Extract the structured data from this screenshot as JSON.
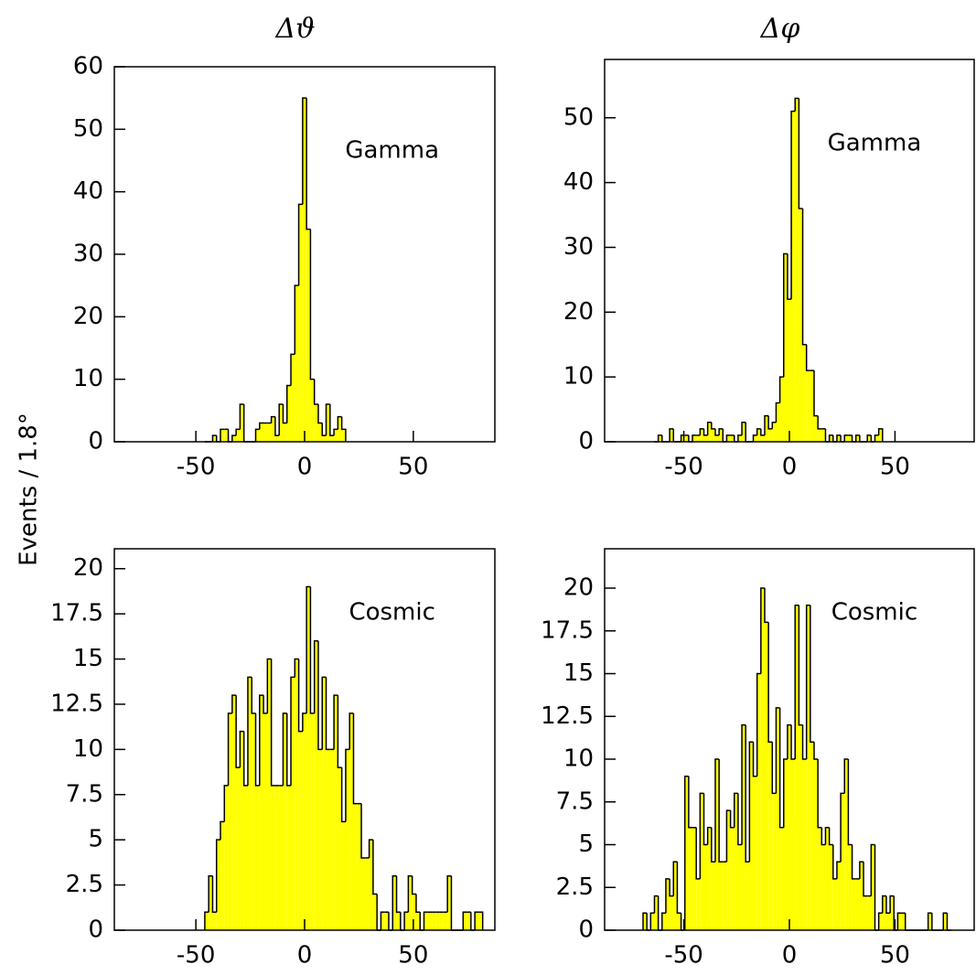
{
  "ylabel": "Events / 1.8°",
  "chart_data": [
    {
      "type": "histogram",
      "title": "Δϑ",
      "annotation": "Gamma",
      "color": "#ffff00",
      "bins": [
        -45.9,
        -44.1,
        -42.3,
        -40.5,
        -38.7,
        -36.9,
        -35.1,
        -33.3,
        -31.5,
        -29.7,
        -27.9,
        -26.1,
        -24.3,
        -22.5,
        -20.7,
        -18.9,
        -17.1,
        -15.3,
        -13.5,
        -11.7,
        -9.9,
        -8.1,
        -6.3,
        -4.5,
        -2.7,
        -0.9,
        0.9,
        2.7,
        4.5,
        6.3,
        8.1,
        9.9,
        11.7,
        13.5,
        15.3,
        17.1,
        18.9
      ],
      "values": [
        0,
        0,
        1,
        0,
        2,
        2,
        0,
        1,
        2,
        6,
        0,
        0,
        0,
        2,
        3,
        3,
        3,
        4,
        1,
        6,
        3,
        9,
        14,
        25,
        38,
        55,
        34,
        10,
        6,
        3,
        1,
        6,
        1,
        2,
        4,
        2
      ],
      "xlim": [
        -87.5,
        87.5
      ],
      "xticks": [
        -50,
        0,
        50
      ],
      "ylim": [
        0,
        60
      ],
      "yticks": [
        0,
        10,
        20,
        30,
        40,
        50,
        60
      ]
    },
    {
      "type": "histogram",
      "title": "Δφ",
      "annotation": "Gamma",
      "color": "#ffff00",
      "bins": [
        -63.9,
        -62.1,
        -60.3,
        -58.5,
        -56.7,
        -54.9,
        -53.1,
        -51.3,
        -49.5,
        -47.7,
        -45.9,
        -44.1,
        -42.3,
        -40.5,
        -38.7,
        -36.9,
        -35.1,
        -33.3,
        -31.5,
        -29.7,
        -27.9,
        -26.1,
        -24.3,
        -22.5,
        -20.7,
        -18.9,
        -17.1,
        -15.3,
        -13.5,
        -11.7,
        -9.9,
        -8.1,
        -6.3,
        -4.5,
        -2.7,
        -0.9,
        0.9,
        2.7,
        4.5,
        6.3,
        8.1,
        9.9,
        11.7,
        13.5,
        15.3,
        17.1,
        18.9,
        20.7,
        22.5,
        24.3,
        26.1,
        27.9,
        29.7,
        31.5,
        33.3,
        35.1,
        36.9,
        38.7,
        40.5,
        42.3,
        44.1
      ],
      "values": [
        0,
        1,
        0,
        0,
        2,
        0,
        0,
        1,
        1,
        0,
        1,
        1,
        2,
        1,
        3,
        2,
        1,
        2,
        0,
        1,
        1,
        0,
        1,
        3,
        0,
        0,
        1,
        2,
        1,
        4,
        2,
        3,
        6,
        10,
        29,
        22,
        51,
        53,
        36,
        15,
        11,
        11,
        4,
        2,
        2,
        0,
        1,
        0,
        1,
        0,
        1,
        1,
        0,
        1,
        0,
        0,
        1,
        0,
        1,
        2
      ],
      "xlim": [
        -87.5,
        87.5
      ],
      "xticks": [
        -50,
        0,
        50
      ],
      "ylim": [
        0,
        59
      ],
      "yticks": [
        0,
        10,
        20,
        30,
        40,
        50
      ]
    },
    {
      "type": "histogram",
      "annotation": "Cosmic",
      "color": "#ffff00",
      "bins": [
        -45.9,
        -44.1,
        -42.3,
        -40.5,
        -38.7,
        -36.9,
        -35.1,
        -33.3,
        -31.5,
        -29.7,
        -27.9,
        -26.1,
        -24.3,
        -22.5,
        -20.7,
        -18.9,
        -17.1,
        -15.3,
        -13.5,
        -11.7,
        -9.9,
        -8.1,
        -6.3,
        -4.5,
        -2.7,
        -0.9,
        0.9,
        2.7,
        4.5,
        6.3,
        8.1,
        9.9,
        11.7,
        13.5,
        15.3,
        17.1,
        18.9,
        20.7,
        22.5,
        24.3,
        26.1,
        27.9,
        29.7,
        31.5,
        33.3,
        35.1,
        36.9,
        38.7,
        40.5,
        42.3,
        44.1,
        45.9,
        47.7,
        49.5,
        51.3,
        53.1,
        54.9,
        56.7,
        58.5,
        60.3,
        62.1,
        63.9,
        65.7,
        67.5,
        69.3,
        71.1,
        72.9,
        74.7,
        76.5,
        78.3,
        80.1,
        81.9
      ],
      "values": [
        1,
        3,
        1,
        5,
        6,
        8,
        12,
        13,
        9,
        11,
        8,
        14,
        12,
        8,
        13,
        12,
        15,
        8,
        8,
        8,
        12,
        8,
        14,
        15,
        11,
        12,
        19,
        12,
        16,
        10,
        14,
        10,
        10,
        13,
        9,
        6,
        10,
        12,
        7,
        7,
        4,
        4,
        5,
        2,
        0,
        1,
        1,
        0,
        3,
        1,
        0,
        1,
        3,
        2,
        1,
        0,
        1,
        1,
        1,
        1,
        1,
        1,
        3,
        0,
        0,
        0,
        1,
        1,
        0,
        1,
        1
      ],
      "xlim": [
        -87.5,
        87.5
      ],
      "xticks": [
        -50,
        0,
        50
      ],
      "ylim": [
        0,
        21.1
      ],
      "yticks": [
        0,
        2.5,
        5,
        7.5,
        10,
        12.5,
        15,
        17.5,
        20
      ]
    },
    {
      "type": "histogram",
      "annotation": "Cosmic",
      "color": "#ffff00",
      "bins": [
        -69.3,
        -67.5,
        -65.7,
        -63.9,
        -62.1,
        -60.3,
        -58.5,
        -56.7,
        -54.9,
        -53.1,
        -51.3,
        -49.5,
        -47.7,
        -45.9,
        -44.1,
        -42.3,
        -40.5,
        -38.7,
        -36.9,
        -35.1,
        -33.3,
        -31.5,
        -29.7,
        -27.9,
        -26.1,
        -24.3,
        -22.5,
        -20.7,
        -18.9,
        -17.1,
        -15.3,
        -13.5,
        -11.7,
        -9.9,
        -8.1,
        -6.3,
        -4.5,
        -2.7,
        -0.9,
        0.9,
        2.7,
        4.5,
        6.3,
        8.1,
        9.9,
        11.7,
        13.5,
        15.3,
        17.1,
        18.9,
        20.7,
        22.5,
        24.3,
        26.1,
        27.9,
        29.7,
        31.5,
        33.3,
        35.1,
        36.9,
        38.7,
        40.5,
        42.3,
        44.1,
        45.9,
        47.7,
        49.5,
        51.3,
        53.1,
        54.9,
        56.7,
        58.5,
        60.3,
        62.1,
        63.9,
        65.7,
        67.5,
        69.3,
        71.1,
        72.9,
        74.7,
        76.5
      ],
      "values": [
        1,
        0,
        1,
        2,
        0,
        1,
        3,
        2,
        4,
        1,
        0,
        9,
        6,
        6,
        3,
        8,
        5,
        6,
        4,
        10,
        4,
        4,
        7,
        6,
        8,
        5,
        12,
        4,
        11,
        9,
        15,
        20,
        18,
        11,
        8,
        13,
        6,
        10,
        12,
        10,
        19,
        12,
        10,
        19,
        11,
        10,
        6,
        5,
        6,
        5,
        3,
        4,
        8,
        10,
        5,
        3,
        3,
        4,
        2,
        2,
        5,
        0,
        1,
        2,
        1,
        2,
        0,
        1,
        1,
        0,
        0,
        0,
        0,
        0,
        0,
        1,
        0,
        0,
        0,
        1,
        0
      ],
      "xlim": [
        -87.5,
        87.5
      ],
      "xticks": [
        -50,
        0,
        50
      ],
      "ylim": [
        0,
        22.3
      ],
      "yticks": [
        0,
        2.5,
        5,
        7.5,
        10,
        12.5,
        15,
        17.5,
        20
      ]
    }
  ]
}
